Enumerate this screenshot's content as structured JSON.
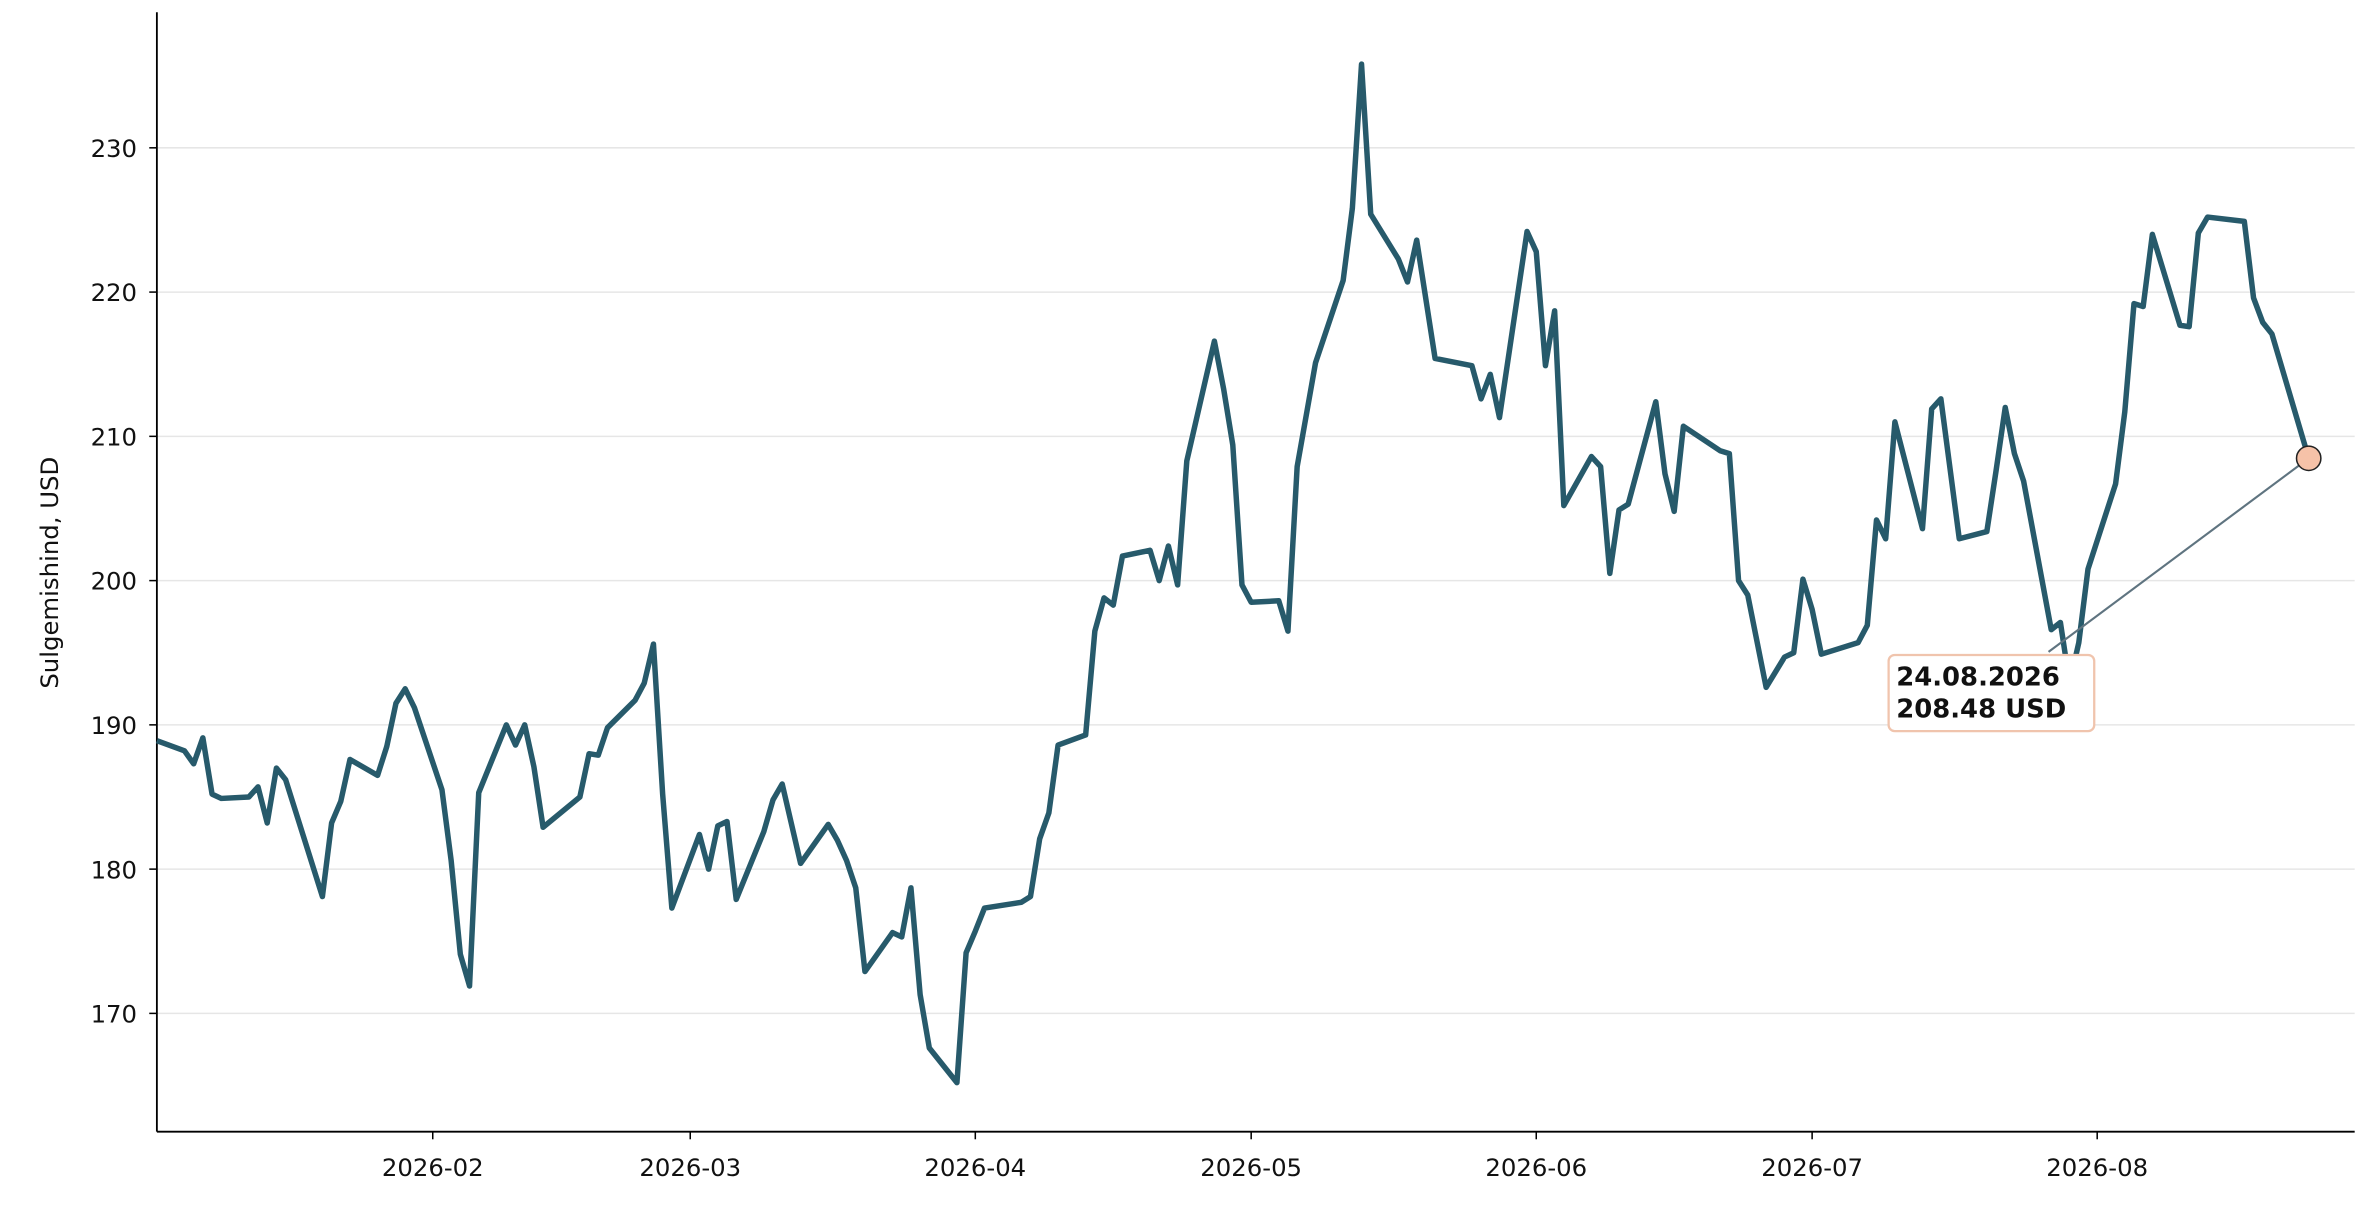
{
  "chart_data": {
    "type": "line",
    "ylabel": "Sulgemishind, USD",
    "color": "#275a6b",
    "marker_color": "#f6c2a8",
    "grid": true,
    "xlim": [
      "2026-01-02",
      "2026-08-29"
    ],
    "ylim": [
      161.8,
      239.4
    ],
    "yticks": [
      170,
      180,
      190,
      200,
      210,
      220,
      230
    ],
    "xticks": [
      {
        "value": "2026-02-01",
        "label": "2026-02"
      },
      {
        "value": "2026-03-01",
        "label": "2026-03"
      },
      {
        "value": "2026-04-01",
        "label": "2026-04"
      },
      {
        "value": "2026-05-01",
        "label": "2026-05"
      },
      {
        "value": "2026-06-01",
        "label": "2026-06"
      },
      {
        "value": "2026-07-01",
        "label": "2026-07"
      },
      {
        "value": "2026-08-01",
        "label": "2026-08"
      }
    ],
    "x": [
      "2026-01-02",
      "2026-01-05",
      "2026-01-06",
      "2026-01-07",
      "2026-01-08",
      "2026-01-09",
      "2026-01-12",
      "2026-01-13",
      "2026-01-14",
      "2026-01-15",
      "2026-01-16",
      "2026-01-20",
      "2026-01-21",
      "2026-01-22",
      "2026-01-23",
      "2026-01-26",
      "2026-01-27",
      "2026-01-28",
      "2026-01-29",
      "2026-01-30",
      "2026-02-02",
      "2026-02-03",
      "2026-02-04",
      "2026-02-05",
      "2026-02-06",
      "2026-02-09",
      "2026-02-10",
      "2026-02-11",
      "2026-02-12",
      "2026-02-13",
      "2026-02-17",
      "2026-02-18",
      "2026-02-19",
      "2026-02-20",
      "2026-02-23",
      "2026-02-24",
      "2026-02-25",
      "2026-02-26",
      "2026-02-27",
      "2026-03-02",
      "2026-03-03",
      "2026-03-04",
      "2026-03-05",
      "2026-03-06",
      "2026-03-09",
      "2026-03-10",
      "2026-03-11",
      "2026-03-13",
      "2026-03-16",
      "2026-03-17",
      "2026-03-18",
      "2026-03-19",
      "2026-03-20",
      "2026-03-23",
      "2026-03-24",
      "2026-03-25",
      "2026-03-26",
      "2026-03-27",
      "2026-03-30",
      "2026-03-31",
      "2026-04-01",
      "2026-04-02",
      "2026-04-06",
      "2026-04-07",
      "2026-04-08",
      "2026-04-09",
      "2026-04-10",
      "2026-04-13",
      "2026-04-14",
      "2026-04-15",
      "2026-04-16",
      "2026-04-17",
      "2026-04-20",
      "2026-04-21",
      "2026-04-22",
      "2026-04-23",
      "2026-04-24",
      "2026-04-27",
      "2026-04-28",
      "2026-04-29",
      "2026-04-30",
      "2026-05-01",
      "2026-05-04",
      "2026-05-05",
      "2026-05-06",
      "2026-05-07",
      "2026-05-08",
      "2026-05-11",
      "2026-05-12",
      "2026-05-13",
      "2026-05-14",
      "2026-05-17",
      "2026-05-18",
      "2026-05-19",
      "2026-05-21",
      "2026-05-25",
      "2026-05-26",
      "2026-05-27",
      "2026-05-28",
      "2026-05-31",
      "2026-06-01",
      "2026-06-02",
      "2026-06-03",
      "2026-06-04",
      "2026-06-07",
      "2026-06-08",
      "2026-06-09",
      "2026-06-10",
      "2026-06-11",
      "2026-06-14",
      "2026-06-15",
      "2026-06-16",
      "2026-06-17",
      "2026-06-21",
      "2026-06-22",
      "2026-06-23",
      "2026-06-24",
      "2026-06-26",
      "2026-06-28",
      "2026-06-29",
      "2026-06-30",
      "2026-07-01",
      "2026-07-02",
      "2026-07-06",
      "2026-07-07",
      "2026-07-08",
      "2026-07-09",
      "2026-07-10",
      "2026-07-13",
      "2026-07-14",
      "2026-07-15",
      "2026-07-17",
      "2026-07-20",
      "2026-07-21",
      "2026-07-22",
      "2026-07-23",
      "2026-07-24",
      "2026-07-27",
      "2026-07-28",
      "2026-07-29",
      "2026-07-30",
      "2026-07-31",
      "2026-08-03",
      "2026-08-04",
      "2026-08-05",
      "2026-08-06",
      "2026-08-07",
      "2026-08-10",
      "2026-08-11",
      "2026-08-12",
      "2026-08-13",
      "2026-08-17",
      "2026-08-18",
      "2026-08-19",
      "2026-08-20",
      "2026-08-24"
    ],
    "values": [
      188.9,
      188.2,
      187.3,
      189.1,
      185.2,
      184.9,
      185.0,
      185.7,
      183.2,
      187.0,
      186.2,
      178.1,
      183.2,
      184.7,
      187.6,
      186.5,
      188.5,
      191.5,
      192.5,
      191.2,
      185.5,
      180.6,
      174.1,
      171.9,
      185.3,
      190.0,
      188.6,
      190.0,
      187.1,
      182.9,
      185.0,
      188.0,
      187.9,
      189.8,
      191.7,
      192.9,
      195.6,
      185.2,
      177.3,
      182.4,
      180.0,
      183.0,
      183.3,
      177.9,
      182.6,
      184.8,
      185.9,
      180.4,
      183.1,
      182.0,
      180.6,
      178.7,
      172.9,
      175.6,
      175.3,
      178.7,
      171.3,
      167.6,
      165.2,
      174.2,
      175.7,
      177.3,
      177.7,
      178.1,
      182.1,
      183.9,
      188.6,
      189.3,
      196.5,
      198.8,
      198.3,
      201.7,
      202.1,
      200.0,
      202.4,
      199.7,
      208.3,
      216.6,
      213.3,
      209.4,
      199.7,
      198.5,
      198.6,
      196.5,
      207.9,
      211.5,
      215.1,
      220.8,
      225.8,
      235.8,
      225.4,
      222.3,
      220.7,
      223.6,
      215.4,
      214.9,
      212.6,
      214.3,
      211.3,
      224.2,
      222.8,
      214.9,
      218.7,
      205.2,
      208.6,
      207.9,
      200.5,
      204.9,
      205.3,
      212.4,
      207.4,
      204.8,
      210.7,
      209.0,
      208.8,
      200.0,
      199.0,
      192.6,
      194.7,
      195.0,
      200.1,
      198.0,
      194.9,
      195.7,
      196.9,
      204.2,
      202.9,
      211.0,
      203.6,
      211.9,
      212.6,
      202.9,
      203.4,
      207.6,
      212.0,
      208.8,
      206.9,
      196.6,
      197.1,
      192.9,
      195.7,
      200.8,
      206.7,
      211.7,
      219.2,
      219.0,
      224.0,
      217.7,
      217.6,
      224.1,
      225.2,
      224.9,
      219.6,
      217.9,
      217.1,
      208.48
    ],
    "annotation": [
      "24.08.2026",
      "208.48 USD"
    ]
  }
}
